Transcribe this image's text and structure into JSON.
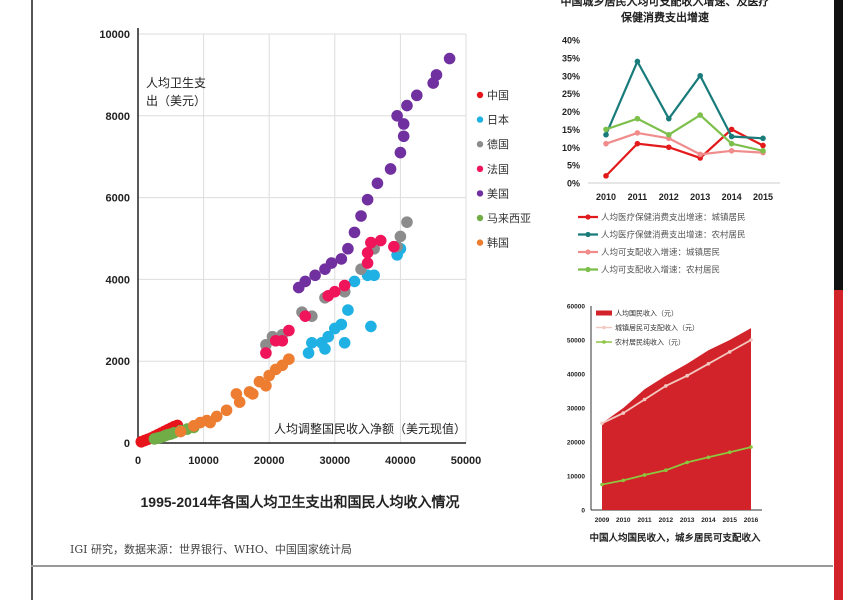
{
  "source_note": "IGI 研究，数据来源：世界银行、WHO、中国国家统计局",
  "chart_data": [
    {
      "type": "scatter",
      "title": "1995-2014年各国人均卫生支出和国民人均收入情况",
      "xlabel": "人均调整国民收入净额（美元现值）",
      "ylabel": "人均卫生支出（美元）",
      "xlim": [
        0,
        50000
      ],
      "ylim": [
        0,
        10000
      ],
      "xticks": [
        "0",
        "10000",
        "20000",
        "30000",
        "40000",
        "50000"
      ],
      "yticks": [
        "0",
        "2000",
        "4000",
        "6000",
        "8000",
        "10000"
      ],
      "grid": true,
      "legend_position": "right",
      "series": [
        {
          "name": "中国",
          "color": "#e8141c",
          "points": [
            [
              500,
              30
            ],
            [
              1000,
              60
            ],
            [
              1500,
              90
            ],
            [
              2000,
              120
            ],
            [
              2500,
              160
            ],
            [
              3000,
              200
            ],
            [
              3500,
              240
            ],
            [
              4000,
              280
            ],
            [
              4500,
              320
            ],
            [
              5000,
              360
            ],
            [
              5500,
              400
            ],
            [
              6000,
              430
            ]
          ]
        },
        {
          "name": "日本",
          "color": "#1fb0e4",
          "points": [
            [
              26000,
              2200
            ],
            [
              26500,
              2450
            ],
            [
              28000,
              2450
            ],
            [
              28500,
              2300
            ],
            [
              29000,
              2600
            ],
            [
              30000,
              2800
            ],
            [
              31000,
              2900
            ],
            [
              31500,
              2450
            ],
            [
              32000,
              3250
            ],
            [
              35500,
              2850
            ],
            [
              33000,
              3950
            ],
            [
              31500,
              3700
            ],
            [
              36000,
              4100
            ],
            [
              35000,
              4100
            ],
            [
              39500,
              4600
            ],
            [
              40000,
              4750
            ]
          ]
        },
        {
          "name": "德国",
          "color": "#8c8c8c",
          "points": [
            [
              19500,
              2400
            ],
            [
              20500,
              2600
            ],
            [
              22000,
              2650
            ],
            [
              25000,
              3200
            ],
            [
              26500,
              3100
            ],
            [
              28500,
              3550
            ],
            [
              31500,
              3700
            ],
            [
              34000,
              4250
            ],
            [
              36000,
              4750
            ],
            [
              39500,
              4800
            ],
            [
              40000,
              5050
            ],
            [
              41000,
              5400
            ]
          ]
        },
        {
          "name": "法国",
          "color": "#f0145a",
          "points": [
            [
              19500,
              2200
            ],
            [
              21000,
              2500
            ],
            [
              22000,
              2500
            ],
            [
              23000,
              2750
            ],
            [
              25500,
              3100
            ],
            [
              29000,
              3600
            ],
            [
              30000,
              3700
            ],
            [
              31500,
              3850
            ],
            [
              35000,
              4400
            ],
            [
              35000,
              4650
            ],
            [
              35500,
              4900
            ],
            [
              37000,
              4950
            ],
            [
              39000,
              4800
            ]
          ]
        },
        {
          "name": "美国",
          "color": "#7030a0",
          "points": [
            [
              24500,
              3800
            ],
            [
              25500,
              3950
            ],
            [
              27000,
              4100
            ],
            [
              28500,
              4250
            ],
            [
              29500,
              4400
            ],
            [
              31000,
              4500
            ],
            [
              32000,
              4750
            ],
            [
              33000,
              5150
            ],
            [
              34000,
              5550
            ],
            [
              35000,
              5950
            ],
            [
              36500,
              6350
            ],
            [
              38500,
              6700
            ],
            [
              40000,
              7100
            ],
            [
              39500,
              8000
            ],
            [
              40500,
              7800
            ],
            [
              40500,
              7500
            ],
            [
              41000,
              8250
            ],
            [
              42500,
              8500
            ],
            [
              45000,
              8800
            ],
            [
              45500,
              9000
            ],
            [
              47500,
              9400
            ]
          ]
        },
        {
          "name": "马来西亚",
          "color": "#70ad47",
          "points": [
            [
              2500,
              100
            ],
            [
              3000,
              120
            ],
            [
              3500,
              140
            ],
            [
              4000,
              170
            ],
            [
              4500,
              200
            ],
            [
              5000,
              220
            ],
            [
              5500,
              250
            ],
            [
              6500,
              300
            ],
            [
              7500,
              340
            ],
            [
              8500,
              380
            ]
          ]
        },
        {
          "name": "韩国",
          "color": "#ed7d31",
          "points": [
            [
              6500,
              280
            ],
            [
              8500,
              420
            ],
            [
              9500,
              500
            ],
            [
              10500,
              550
            ],
            [
              11000,
              500
            ],
            [
              12000,
              650
            ],
            [
              13500,
              800
            ],
            [
              15000,
              1200
            ],
            [
              15500,
              1000
            ],
            [
              17000,
              1250
            ],
            [
              17500,
              1200
            ],
            [
              18500,
              1500
            ],
            [
              19500,
              1400
            ],
            [
              20000,
              1650
            ],
            [
              21000,
              1800
            ],
            [
              22000,
              1900
            ],
            [
              23000,
              2050
            ]
          ]
        }
      ]
    },
    {
      "type": "line",
      "title": "中国城乡居民人均可支配收入增速、及医疗保健消费支出增速",
      "categories": [
        "2010",
        "2011",
        "2012",
        "2013",
        "2014",
        "2015"
      ],
      "ylim": [
        0,
        40
      ],
      "yticks": [
        "0%",
        "5%",
        "10%",
        "15%",
        "20%",
        "25%",
        "30%",
        "35%",
        "40%"
      ],
      "legend_position": "bottom",
      "series": [
        {
          "name": "人均医疗保健消费支出增速：城镇居民",
          "color": "#e31a1c",
          "values": [
            2,
            11,
            10,
            7,
            15,
            10.5
          ]
        },
        {
          "name": "人均医疗保健消费支出增速：农村居民",
          "color": "#1a7b7b",
          "values": [
            13.5,
            34,
            18,
            30,
            13,
            12.5
          ]
        },
        {
          "name": "人均可支配收入增速：城镇居民",
          "color": "#f08c8c",
          "values": [
            11,
            14,
            12.5,
            8,
            9,
            8.5
          ]
        },
        {
          "name": "人均可支配收入增速：农村居民",
          "color": "#7cbf4a",
          "values": [
            15,
            18,
            13.5,
            19,
            11,
            9
          ]
        }
      ]
    },
    {
      "type": "area",
      "title": "中国人均国民收入，城乡居民可支配收入",
      "categories": [
        "2009",
        "2010",
        "2011",
        "2012",
        "2013",
        "2014",
        "2015",
        "2016"
      ],
      "ylim": [
        0,
        60000
      ],
      "yticks": [
        "0",
        "10000",
        "20000",
        "30000",
        "40000",
        "50000",
        "60000"
      ],
      "legend_position": "top-left",
      "series": [
        {
          "name": "人均国民收入（元）",
          "kind": "area",
          "color": "#d2232a",
          "values": [
            25500,
            30000,
            35500,
            39500,
            43000,
            47000,
            50000,
            53500
          ]
        },
        {
          "name": "城镇居民可支配收入（元）",
          "kind": "line",
          "color": "#f2c9c0",
          "values": [
            25500,
            28500,
            32500,
            36500,
            39500,
            43000,
            46500,
            50000
          ]
        },
        {
          "name": "农村居民纯收入（元）",
          "kind": "line",
          "color": "#8cc63f",
          "values": [
            7500,
            8700,
            10300,
            11700,
            14000,
            15500,
            17000,
            18500
          ]
        }
      ]
    }
  ]
}
